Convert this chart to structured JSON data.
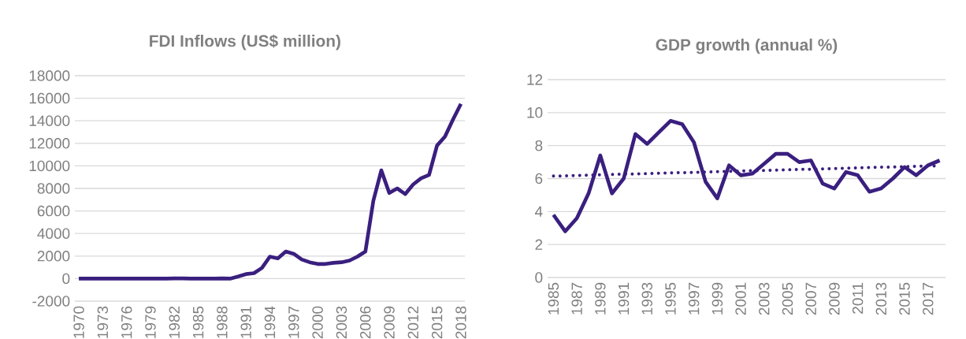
{
  "chart_data": [
    {
      "type": "line",
      "title": "FDI Inflows (US$ million)",
      "categories": [
        "1970",
        null,
        null,
        "1973",
        null,
        null,
        "1976",
        null,
        null,
        "1979",
        null,
        null,
        "1982",
        null,
        null,
        "1985",
        null,
        null,
        "1988",
        null,
        null,
        "1991",
        null,
        null,
        "1994",
        null,
        null,
        "1997",
        null,
        null,
        "2000",
        null,
        null,
        "2003",
        null,
        null,
        "2006",
        null,
        null,
        "2009",
        null,
        null,
        "2012",
        null,
        null,
        "2015",
        null,
        null,
        "2018"
      ],
      "series": [
        {
          "color": "#3a1f7f",
          "line_style": "solid",
          "values": [
            0,
            0,
            0,
            0,
            0,
            0,
            0,
            0,
            0,
            0,
            0,
            0,
            20,
            20,
            0,
            0,
            0,
            0,
            20,
            0,
            180,
            400,
            480,
            950,
            1950,
            1800,
            2400,
            2200,
            1700,
            1450,
            1300,
            1300,
            1400,
            1450,
            1600,
            1950,
            2400,
            6900,
            9600,
            7600,
            8000,
            7500,
            8350,
            8900,
            9200,
            11800,
            12600,
            14100,
            15500
          ]
        }
      ],
      "ylim": [
        -2000,
        18000
      ],
      "yticks": [
        -2000,
        0,
        2000,
        4000,
        6000,
        8000,
        10000,
        12000,
        14000,
        16000,
        18000
      ],
      "grid": "y"
    },
    {
      "type": "line",
      "title": "GDP growth (annual %)",
      "categories": [
        "1985",
        null,
        "1987",
        null,
        "1989",
        null,
        "1991",
        null,
        "1993",
        null,
        "1995",
        null,
        "1997",
        null,
        "1999",
        null,
        "2001",
        null,
        "2003",
        null,
        "2005",
        null,
        "2007",
        null,
        "2009",
        null,
        "2011",
        null,
        "2013",
        null,
        "2015",
        null,
        "2017",
        null
      ],
      "series": [
        {
          "color": "#3a1f7f",
          "line_style": "solid",
          "values": [
            3.8,
            2.8,
            3.6,
            5.1,
            7.4,
            5.1,
            6.0,
            8.7,
            8.1,
            8.8,
            9.5,
            9.3,
            8.2,
            5.8,
            4.8,
            6.8,
            6.2,
            6.3,
            6.9,
            7.5,
            7.5,
            7.0,
            7.1,
            5.7,
            5.4,
            6.4,
            6.2,
            5.2,
            5.4,
            6.0,
            6.7,
            6.2,
            6.8,
            7.1
          ]
        },
        {
          "color": "#3a1f7f",
          "line_style": "dotted",
          "values": [
            6.15,
            6.17,
            6.19,
            6.21,
            6.23,
            6.25,
            6.27,
            6.28,
            6.3,
            6.32,
            6.34,
            6.36,
            6.38,
            6.4,
            6.42,
            6.44,
            6.46,
            6.48,
            6.49,
            6.51,
            6.53,
            6.55,
            6.57,
            6.59,
            6.61,
            6.63,
            6.65,
            6.67,
            6.69,
            6.7,
            6.72,
            6.74,
            6.76,
            6.78
          ]
        }
      ],
      "ylim": [
        0,
        12
      ],
      "yticks": [
        0,
        2,
        4,
        6,
        8,
        10,
        12
      ],
      "grid": "y"
    }
  ]
}
